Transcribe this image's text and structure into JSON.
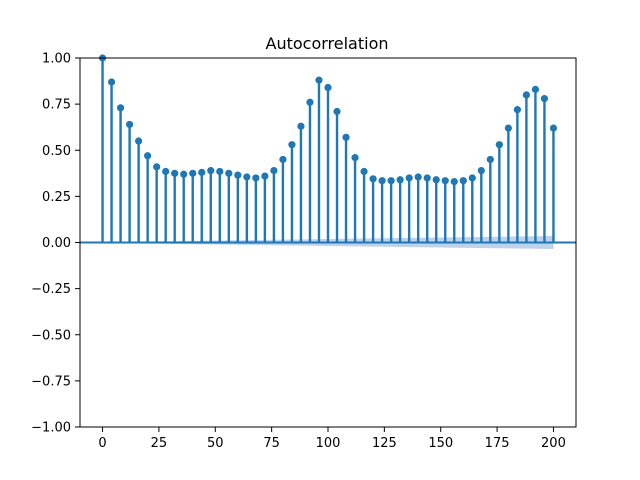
{
  "chart_data": {
    "type": "stem",
    "title": "Autocorrelation",
    "xlabel": "",
    "ylabel": "",
    "xlim": [
      -10,
      210
    ],
    "ylim": [
      -1.0,
      1.0
    ],
    "grid": false,
    "colors": {
      "stem": "#1f77b4",
      "band": "#aec7e8",
      "frame": "#000000"
    },
    "xticks": [
      {
        "value": 0,
        "label": "0"
      },
      {
        "value": 25,
        "label": "25"
      },
      {
        "value": 50,
        "label": "50"
      },
      {
        "value": 75,
        "label": "75"
      },
      {
        "value": 100,
        "label": "100"
      },
      {
        "value": 125,
        "label": "125"
      },
      {
        "value": 150,
        "label": "150"
      },
      {
        "value": 175,
        "label": "175"
      },
      {
        "value": 200,
        "label": "200"
      }
    ],
    "yticks": [
      {
        "value": 1.0,
        "label": "1.00"
      },
      {
        "value": 0.75,
        "label": "0.75"
      },
      {
        "value": 0.5,
        "label": "0.50"
      },
      {
        "value": 0.25,
        "label": "0.25"
      },
      {
        "value": 0.0,
        "label": "0.00"
      },
      {
        "value": -0.25,
        "label": "−0.25"
      },
      {
        "value": -0.5,
        "label": "−0.50"
      },
      {
        "value": -0.75,
        "label": "−0.75"
      },
      {
        "value": -1.0,
        "label": "−1.00"
      }
    ],
    "lags": [
      0,
      4,
      8,
      12,
      16,
      20,
      24,
      28,
      32,
      36,
      40,
      44,
      48,
      52,
      56,
      60,
      64,
      68,
      72,
      76,
      80,
      84,
      88,
      92,
      96,
      100,
      104,
      108,
      112,
      116,
      120,
      124,
      128,
      132,
      136,
      140,
      144,
      148,
      152,
      156,
      160,
      164,
      168,
      172,
      176,
      180,
      184,
      188,
      192,
      196,
      200
    ],
    "acf": [
      1.0,
      0.87,
      0.73,
      0.64,
      0.55,
      0.47,
      0.41,
      0.385,
      0.375,
      0.37,
      0.375,
      0.38,
      0.39,
      0.385,
      0.375,
      0.365,
      0.355,
      0.35,
      0.36,
      0.39,
      0.45,
      0.53,
      0.63,
      0.76,
      0.88,
      0.84,
      0.71,
      0.57,
      0.46,
      0.385,
      0.345,
      0.335,
      0.335,
      0.34,
      0.35,
      0.355,
      0.35,
      0.34,
      0.335,
      0.33,
      0.335,
      0.35,
      0.39,
      0.45,
      0.53,
      0.62,
      0.72,
      0.8,
      0.83,
      0.78,
      0.62
    ],
    "confidence_band": {
      "lags": [
        0,
        25,
        50,
        75,
        100,
        125,
        150,
        175,
        200
      ],
      "lower": [
        0.0,
        -0.006,
        -0.011,
        -0.015,
        -0.019,
        -0.023,
        -0.027,
        -0.031,
        -0.035
      ],
      "upper": [
        0.0,
        0.006,
        0.011,
        0.015,
        0.019,
        0.023,
        0.027,
        0.031,
        0.035
      ]
    }
  }
}
